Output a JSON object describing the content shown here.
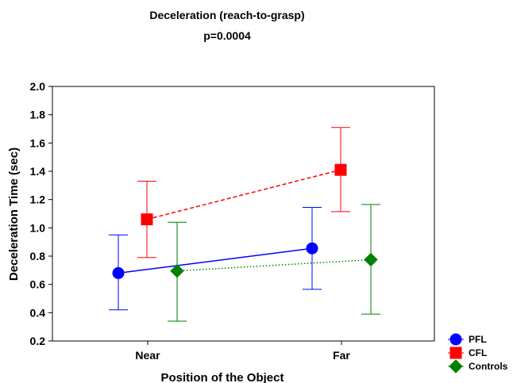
{
  "chart_data": {
    "type": "line",
    "title": "Deceleration (reach-to-grasp)",
    "subtitle": "p=0.0004",
    "xlabel": "Position of the Object",
    "ylabel": "Deceleration Time (sec)",
    "categories": [
      "Near",
      "Far"
    ],
    "ylim": [
      0.2,
      2.0
    ],
    "yticks": [
      "0.2",
      "0.4",
      "0.6",
      "0.8",
      "1.0",
      "1.2",
      "1.4",
      "1.6",
      "1.8",
      "2.0"
    ],
    "grid": false,
    "legend_position": "bottom-right",
    "series": [
      {
        "name": "PFL",
        "values": [
          0.68,
          0.855
        ],
        "lower": [
          0.42,
          0.565
        ],
        "upper": [
          0.95,
          1.145
        ],
        "color": "#0000ff",
        "marker": "circle",
        "line_style": "solid"
      },
      {
        "name": "CFL",
        "values": [
          1.06,
          1.41
        ],
        "lower": [
          0.79,
          1.115
        ],
        "upper": [
          1.33,
          1.71
        ],
        "color": "#ff0000",
        "marker": "square",
        "line_style": "dashed"
      },
      {
        "name": "Controls",
        "values": [
          0.695,
          0.775
        ],
        "lower": [
          0.34,
          0.39
        ],
        "upper": [
          1.04,
          1.165
        ],
        "color": "#008000",
        "marker": "diamond",
        "line_style": "dotted"
      }
    ]
  }
}
